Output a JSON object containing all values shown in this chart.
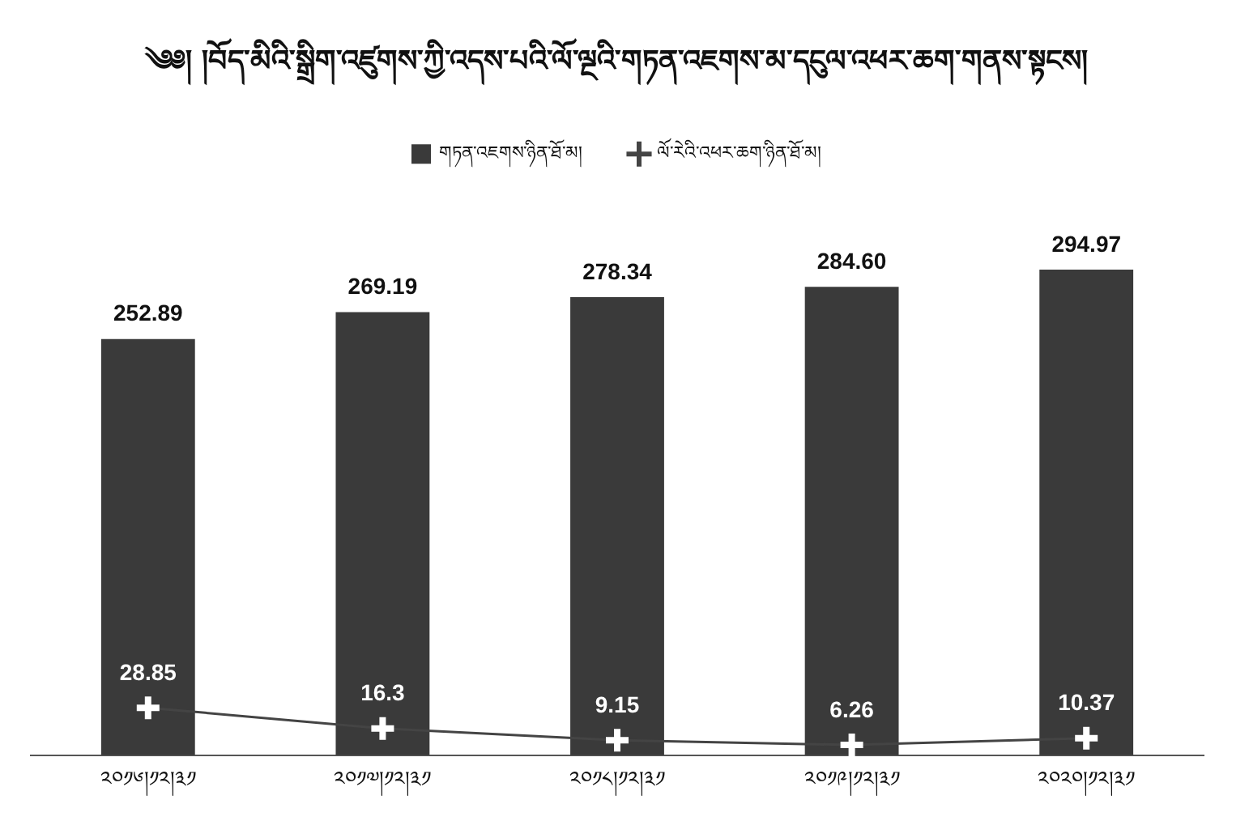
{
  "chart_data": {
    "type": "bar",
    "title": "༄༅། །བོད་མིའི་སྒྲིག་འཛུགས་ཀྱི་འདས་པའི་ལོ་ལྔའི་གཏན་འཇགས་མ་དངུལ་འཕར་ཆག་གནས་སྟངས།",
    "categories": [
      "༢༠༡༦།༡༢།༣༡",
      "༢༠༡༧།༡༢།༣༡",
      "༢༠༡༨།༡༢།༣༡",
      "༢༠༡༩།༡༢།༣༡",
      "༢༠༢༠།༡༢།༣༡"
    ],
    "series": [
      {
        "name": "གཏན་འཇགས་ཉིན་ཐོ་མ།",
        "color": "#3a3a3a",
        "values": [
          252.89,
          269.19,
          278.34,
          284.6,
          294.97
        ],
        "value_labels": [
          "252.89",
          "269.19",
          "278.34",
          "284.60",
          "294.97"
        ]
      },
      {
        "name": "ལོ་རེའི་འཕར་ཆག་ཉིན་ཐོ་མ།",
        "type": "line",
        "color": "#444444",
        "values": [
          28.85,
          16.3,
          9.15,
          6.26,
          10.37
        ],
        "value_labels": [
          "28.85",
          "16.3",
          "9.15",
          "6.26",
          "10.37"
        ]
      }
    ],
    "legend": "top",
    "marker": "cross",
    "grid": false
  }
}
